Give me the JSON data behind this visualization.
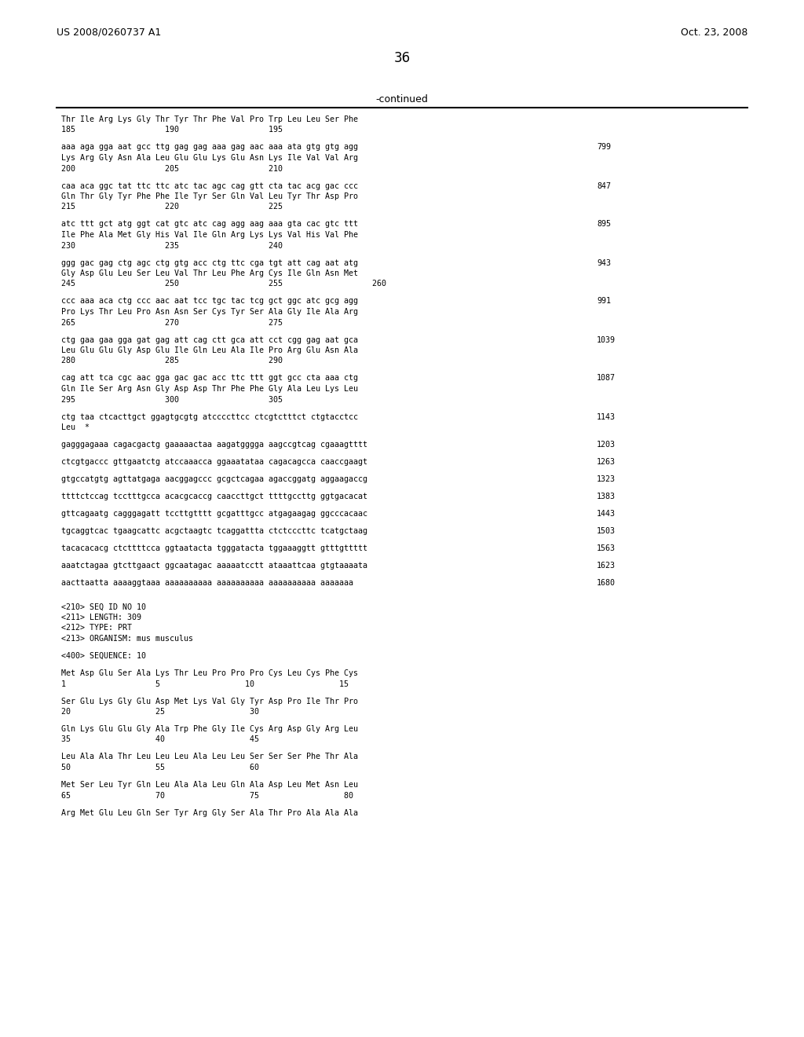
{
  "header_left": "US 2008/0260737 A1",
  "header_right": "Oct. 23, 2008",
  "page_number": "36",
  "continued_label": "-continued",
  "bg_color": "#ffffff",
  "text_color": "#000000",
  "lines": [
    {
      "text": "Thr Ile Arg Lys Gly Thr Tyr Thr Phe Val Pro Trp Leu Leu Ser Phe",
      "num": null
    },
    {
      "text": "185                   190                   195",
      "num": null
    },
    {
      "text": "",
      "num": null
    },
    {
      "text": "aaa aga gga aat gcc ttg gag gag aaa gag aac aaa ata gtg gtg agg",
      "num": "799"
    },
    {
      "text": "Lys Arg Gly Asn Ala Leu Glu Glu Lys Glu Asn Lys Ile Val Val Arg",
      "num": null
    },
    {
      "text": "200                   205                   210",
      "num": null
    },
    {
      "text": "",
      "num": null
    },
    {
      "text": "caa aca ggc tat ttc ttc atc tac agc cag gtt cta tac acg gac ccc",
      "num": "847"
    },
    {
      "text": "Gln Thr Gly Tyr Phe Phe Ile Tyr Ser Gln Val Leu Tyr Thr Asp Pro",
      "num": null
    },
    {
      "text": "215                   220                   225",
      "num": null
    },
    {
      "text": "",
      "num": null
    },
    {
      "text": "atc ttt gct atg ggt cat gtc atc cag agg aag aaa gta cac gtc ttt",
      "num": "895"
    },
    {
      "text": "Ile Phe Ala Met Gly His Val Ile Gln Arg Lys Lys Val His Val Phe",
      "num": null
    },
    {
      "text": "230                   235                   240",
      "num": null
    },
    {
      "text": "",
      "num": null
    },
    {
      "text": "ggg gac gag ctg agc ctg gtg acc ctg ttc cga tgt att cag aat atg",
      "num": "943"
    },
    {
      "text": "Gly Asp Glu Leu Ser Leu Val Thr Leu Phe Arg Cys Ile Gln Asn Met",
      "num": null
    },
    {
      "text": "245                   250                   255                   260",
      "num": null
    },
    {
      "text": "",
      "num": null
    },
    {
      "text": "ccc aaa aca ctg ccc aac aat tcc tgc tac tcg gct ggc atc gcg agg",
      "num": "991"
    },
    {
      "text": "Pro Lys Thr Leu Pro Asn Asn Ser Cys Tyr Ser Ala Gly Ile Ala Arg",
      "num": null
    },
    {
      "text": "265                   270                   275",
      "num": null
    },
    {
      "text": "",
      "num": null
    },
    {
      "text": "ctg gaa gaa gga gat gag att cag ctt gca att cct cgg gag aat gca",
      "num": "1039"
    },
    {
      "text": "Leu Glu Glu Gly Asp Glu Ile Gln Leu Ala Ile Pro Arg Glu Asn Ala",
      "num": null
    },
    {
      "text": "280                   285                   290",
      "num": null
    },
    {
      "text": "",
      "num": null
    },
    {
      "text": "cag att tca cgc aac gga gac gac acc ttc ttt ggt gcc cta aaa ctg",
      "num": "1087"
    },
    {
      "text": "Gln Ile Ser Arg Asn Gly Asp Asp Thr Phe Phe Gly Ala Leu Lys Leu",
      "num": null
    },
    {
      "text": "295                   300                   305",
      "num": null
    },
    {
      "text": "",
      "num": null
    },
    {
      "text": "ctg taa ctcacttgct ggagtgcgtg atccccttcc ctcgtctttct ctgtacctcc",
      "num": "1143"
    },
    {
      "text": "Leu  *",
      "num": null
    },
    {
      "text": "",
      "num": null
    },
    {
      "text": "gagggagaaa cagacgactg gaaaaactaa aagatgggga aagccgtcag cgaaagtttt",
      "num": "1203"
    },
    {
      "text": "",
      "num": null
    },
    {
      "text": "ctcgtgaccc gttgaatctg atccaaacca ggaaatataa cagacagcca caaccgaagt",
      "num": "1263"
    },
    {
      "text": "",
      "num": null
    },
    {
      "text": "gtgccatgtg agttatgaga aacggagccc gcgctcagaa agaccggatg aggaagaccg",
      "num": "1323"
    },
    {
      "text": "",
      "num": null
    },
    {
      "text": "ttttctccag tcctttgcca acacgcaccg caaccttgct ttttgccttg ggtgacacat",
      "num": "1383"
    },
    {
      "text": "",
      "num": null
    },
    {
      "text": "gttcagaatg cagggagatt tccttgtttt gcgatttgcc atgagaagag ggcccacaac",
      "num": "1443"
    },
    {
      "text": "",
      "num": null
    },
    {
      "text": "tgcaggtcac tgaagcattc acgctaagtc tcaggattta ctctcccttc tcatgctaag",
      "num": "1503"
    },
    {
      "text": "",
      "num": null
    },
    {
      "text": "tacacacacg ctcttttcca ggtaatacta tgggatacta tggaaaggtt gtttgttttt",
      "num": "1563"
    },
    {
      "text": "",
      "num": null
    },
    {
      "text": "aaatctagaa gtcttgaact ggcaatagac aaaaatcctt ataaattcaa gtgtaaaata",
      "num": "1623"
    },
    {
      "text": "",
      "num": null
    },
    {
      "text": "aacttaatta aaaaggtaaa aaaaaaaaaa aaaaaaaaaa aaaaaaaaaa aaaaaaa",
      "num": "1680"
    },
    {
      "text": "",
      "num": null
    },
    {
      "text": "",
      "num": null
    },
    {
      "text": "<210> SEQ ID NO 10",
      "num": null
    },
    {
      "text": "<211> LENGTH: 309",
      "num": null
    },
    {
      "text": "<212> TYPE: PRT",
      "num": null
    },
    {
      "text": "<213> ORGANISM: mus musculus",
      "num": null
    },
    {
      "text": "",
      "num": null
    },
    {
      "text": "<400> SEQUENCE: 10",
      "num": null
    },
    {
      "text": "",
      "num": null
    },
    {
      "text": "Met Asp Glu Ser Ala Lys Thr Leu Pro Pro Pro Cys Leu Cys Phe Cys",
      "num": null
    },
    {
      "text": "1                   5                  10                  15",
      "num": null
    },
    {
      "text": "",
      "num": null
    },
    {
      "text": "Ser Glu Lys Gly Glu Asp Met Lys Val Gly Tyr Asp Pro Ile Thr Pro",
      "num": null
    },
    {
      "text": "20                  25                  30",
      "num": null
    },
    {
      "text": "",
      "num": null
    },
    {
      "text": "Gln Lys Glu Glu Gly Ala Trp Phe Gly Ile Cys Arg Asp Gly Arg Leu",
      "num": null
    },
    {
      "text": "35                  40                  45",
      "num": null
    },
    {
      "text": "",
      "num": null
    },
    {
      "text": "Leu Ala Ala Thr Leu Leu Leu Ala Leu Leu Ser Ser Ser Phe Thr Ala",
      "num": null
    },
    {
      "text": "50                  55                  60",
      "num": null
    },
    {
      "text": "",
      "num": null
    },
    {
      "text": "Met Ser Leu Tyr Gln Leu Ala Ala Leu Gln Ala Asp Leu Met Asn Leu",
      "num": null
    },
    {
      "text": "65                  70                  75                  80",
      "num": null
    },
    {
      "text": "",
      "num": null
    },
    {
      "text": "Arg Met Glu Leu Gln Ser Tyr Arg Gly Ser Ala Thr Pro Ala Ala Ala",
      "num": null
    }
  ]
}
